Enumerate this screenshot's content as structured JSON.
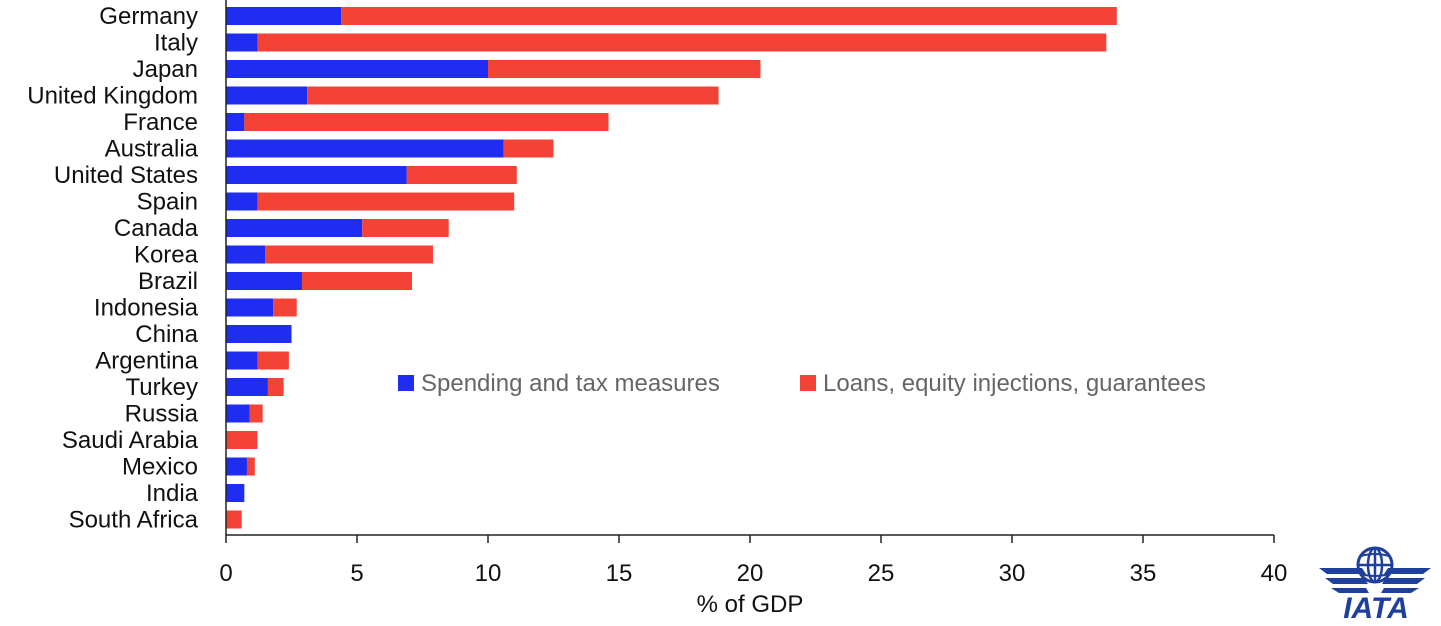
{
  "chart_data": {
    "type": "bar",
    "orientation": "horizontal",
    "stacked": true,
    "xlabel": "% of GDP",
    "xlim": [
      0,
      40
    ],
    "xticks": [
      0,
      5,
      10,
      15,
      20,
      25,
      30,
      35,
      40
    ],
    "grid": false,
    "legend_position": "center-right",
    "categories": [
      "Germany",
      "Italy",
      "Japan",
      "United Kingdom",
      "France",
      "Australia",
      "United States",
      "Spain",
      "Canada",
      "Korea",
      "Brazil",
      "Indonesia",
      "China",
      "Argentina",
      "Turkey",
      "Russia",
      "Saudi Arabia",
      "Mexico",
      "India",
      "South Africa"
    ],
    "series": [
      {
        "name": "Spending and tax measures",
        "color": "#1f2cf2",
        "values": [
          4.4,
          1.2,
          10.0,
          3.1,
          0.7,
          10.6,
          6.9,
          1.2,
          5.2,
          1.5,
          2.9,
          1.8,
          2.5,
          1.2,
          1.6,
          0.9,
          0.0,
          0.8,
          0.7,
          0.0
        ]
      },
      {
        "name": "Loans, equity injections, guarantees",
        "color": "#f44336",
        "values": [
          29.6,
          32.4,
          10.4,
          15.7,
          13.9,
          1.9,
          4.2,
          9.8,
          3.3,
          6.4,
          4.2,
          0.9,
          0.0,
          1.2,
          0.6,
          0.5,
          1.2,
          0.3,
          0.0,
          0.6
        ]
      }
    ]
  },
  "logo": {
    "text": "IATA",
    "icon": "globe-wings-icon",
    "color": "#1e3f9c"
  }
}
